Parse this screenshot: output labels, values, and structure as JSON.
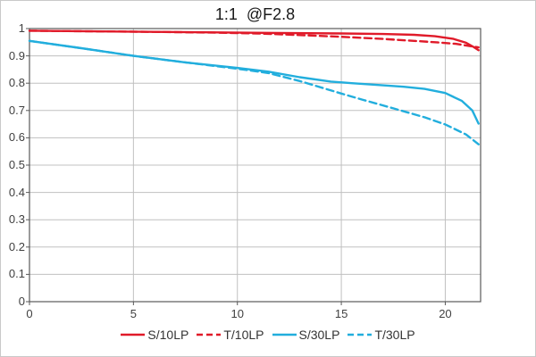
{
  "figure": {
    "background": "#ffffff",
    "frame_color": "#c9c9c9"
  },
  "chart_data": {
    "type": "line",
    "title": "1:1  @F2.8",
    "xlabel": "",
    "ylabel": "",
    "xlim": [
      0,
      21.7
    ],
    "ylim": [
      0,
      1
    ],
    "grid": true,
    "legend_position": "bottom",
    "x_ticks": [
      "0",
      "5",
      "10",
      "15",
      "20"
    ],
    "y_ticks": [
      "1",
      "0.9",
      "0.8",
      "0.7",
      "0.6",
      "0.5",
      "0.4",
      "0.3",
      "0.2",
      "0.1",
      "0"
    ],
    "colors": {
      "red_series": "#e01a29",
      "cyan_series": "#22aedd",
      "grid": "#c0c0c0",
      "plot_border": "#595959",
      "title_text": "#1a1a1a",
      "tick_text": "#404040",
      "legend_text": "#333333"
    },
    "series": [
      {
        "name": "S/10LP",
        "color": "#e01a29",
        "style": "solid",
        "points": [
          [
            0,
            0.992
          ],
          [
            3,
            0.99
          ],
          [
            6,
            0.988
          ],
          [
            9,
            0.986
          ],
          [
            12,
            0.984
          ],
          [
            15,
            0.982
          ],
          [
            17,
            0.98
          ],
          [
            18.5,
            0.977
          ],
          [
            19.5,
            0.972
          ],
          [
            20.4,
            0.962
          ],
          [
            21,
            0.948
          ],
          [
            21.35,
            0.933
          ],
          [
            21.6,
            0.921
          ]
        ]
      },
      {
        "name": "T/10LP",
        "color": "#e01a29",
        "style": "dashed",
        "points": [
          [
            0,
            0.992
          ],
          [
            3,
            0.99
          ],
          [
            6,
            0.988
          ],
          [
            9,
            0.985
          ],
          [
            11,
            0.982
          ],
          [
            13,
            0.976
          ],
          [
            15,
            0.97
          ],
          [
            17,
            0.962
          ],
          [
            18.5,
            0.955
          ],
          [
            19.5,
            0.95
          ],
          [
            20.5,
            0.944
          ],
          [
            21.6,
            0.931
          ]
        ]
      },
      {
        "name": "S/30LP",
        "color": "#22aedd",
        "style": "solid",
        "points": [
          [
            0,
            0.955
          ],
          [
            2.5,
            0.928
          ],
          [
            5,
            0.9
          ],
          [
            7.5,
            0.876
          ],
          [
            10,
            0.856
          ],
          [
            11.5,
            0.842
          ],
          [
            13,
            0.822
          ],
          [
            14.5,
            0.806
          ],
          [
            15.5,
            0.8
          ],
          [
            17,
            0.792
          ],
          [
            18,
            0.787
          ],
          [
            19,
            0.779
          ],
          [
            20,
            0.764
          ],
          [
            20.8,
            0.735
          ],
          [
            21.3,
            0.7
          ],
          [
            21.6,
            0.652
          ]
        ]
      },
      {
        "name": "T/30LP",
        "color": "#22aedd",
        "style": "dashed",
        "points": [
          [
            0,
            0.955
          ],
          [
            2.5,
            0.928
          ],
          [
            5,
            0.9
          ],
          [
            7.5,
            0.876
          ],
          [
            10,
            0.853
          ],
          [
            11.5,
            0.837
          ],
          [
            13,
            0.808
          ],
          [
            15,
            0.762
          ],
          [
            16,
            0.74
          ],
          [
            17.5,
            0.708
          ],
          [
            19,
            0.675
          ],
          [
            20,
            0.649
          ],
          [
            21,
            0.612
          ],
          [
            21.6,
            0.576
          ]
        ]
      }
    ]
  }
}
